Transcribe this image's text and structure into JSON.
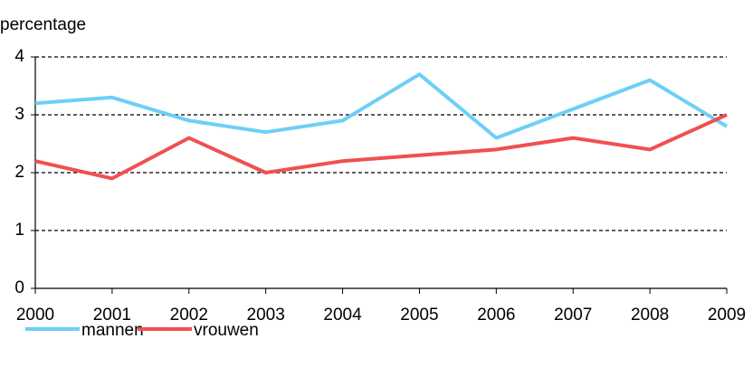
{
  "chart_data": {
    "type": "line",
    "y_label": "percentage",
    "x": [
      2000,
      2001,
      2002,
      2003,
      2004,
      2005,
      2006,
      2007,
      2008,
      2009
    ],
    "xlim": [
      2000,
      2009
    ],
    "xticks": [
      2000,
      2001,
      2002,
      2003,
      2004,
      2005,
      2006,
      2007,
      2008,
      2009
    ],
    "ylim": [
      0,
      4
    ],
    "yticks": [
      0,
      1,
      2,
      3,
      4
    ],
    "grid": true,
    "legend": "bottom-left",
    "series": [
      {
        "name": "mannen",
        "color": "#6dcff6",
        "values": [
          3.2,
          3.3,
          2.9,
          2.7,
          2.9,
          3.7,
          2.6,
          3.1,
          3.6,
          2.8
        ]
      },
      {
        "name": "vrouwen",
        "color": "#f05050",
        "values": [
          2.2,
          1.9,
          2.6,
          2.0,
          2.2,
          2.3,
          2.4,
          2.6,
          2.4,
          3.0
        ]
      }
    ]
  }
}
